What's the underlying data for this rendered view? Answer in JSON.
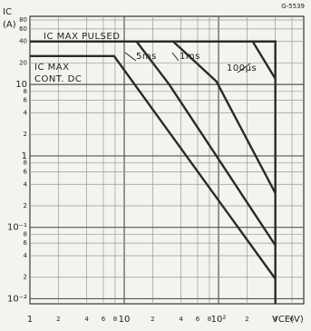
{
  "chart_data": {
    "type": "line",
    "title": "G-5539",
    "y_label": "IC",
    "y_unit": "(A)",
    "x_label": "VCE(V)",
    "log_x": true,
    "log_y": true,
    "grid": true,
    "xlim": [
      1,
      800
    ],
    "ylim": [
      0.0085,
      90
    ],
    "xticks": [
      {
        "value": 1,
        "label": "1"
      },
      {
        "value": 2,
        "label": "2"
      },
      {
        "value": 4,
        "label": "4"
      },
      {
        "value": 6,
        "label": "6"
      },
      {
        "value": 8,
        "label": "8"
      },
      {
        "value": 10,
        "label": "10"
      },
      {
        "value": 20,
        "label": "2"
      },
      {
        "value": 40,
        "label": "4"
      },
      {
        "value": 60,
        "label": "6"
      },
      {
        "value": 80,
        "label": "8"
      },
      {
        "value": 100,
        "label": "10²"
      },
      {
        "value": 200,
        "label": "2"
      },
      {
        "value": 400,
        "label": "4"
      },
      {
        "value": 600,
        "label": "6"
      }
    ],
    "yticks": [
      {
        "value": 0.01,
        "label": "10⁻²"
      },
      {
        "value": 0.02,
        "label": "2"
      },
      {
        "value": 0.04,
        "label": "4"
      },
      {
        "value": 0.06,
        "label": "6"
      },
      {
        "value": 0.08,
        "label": "8"
      },
      {
        "value": 0.1,
        "label": "10⁻¹"
      },
      {
        "value": 0.2,
        "label": "2"
      },
      {
        "value": 0.4,
        "label": "4"
      },
      {
        "value": 0.6,
        "label": "6"
      },
      {
        "value": 0.8,
        "label": "8"
      },
      1,
      2,
      4,
      6,
      8,
      10,
      20,
      40,
      60,
      80
    ],
    "series": [
      {
        "color": "#2a2a2a",
        "x": [
          1,
          400,
          400
        ],
        "values": [
          40,
          40,
          0.0085
        ]
      },
      {
        "color": "#2a2a2a",
        "x": [
          1,
          7.8,
          400
        ],
        "values": [
          25,
          25,
          0.019
        ]
      },
      {
        "color": "#2a2a2a",
        "x": [
          13.5,
          30,
          400
        ],
        "values": [
          40,
          10,
          0.056
        ]
      },
      {
        "color": "#2a2a2a",
        "x": [
          33,
          95,
          400
        ],
        "values": [
          40,
          11,
          0.3
        ]
      },
      {
        "color": "#2a2a2a",
        "x": [
          230,
          400
        ],
        "values": [
          40,
          12
        ]
      }
    ],
    "annotations": [
      "IC MAX  PULSED",
      "IC MAX",
      "CONT. DC",
      "5ms",
      "1ms",
      "100µs"
    ]
  }
}
